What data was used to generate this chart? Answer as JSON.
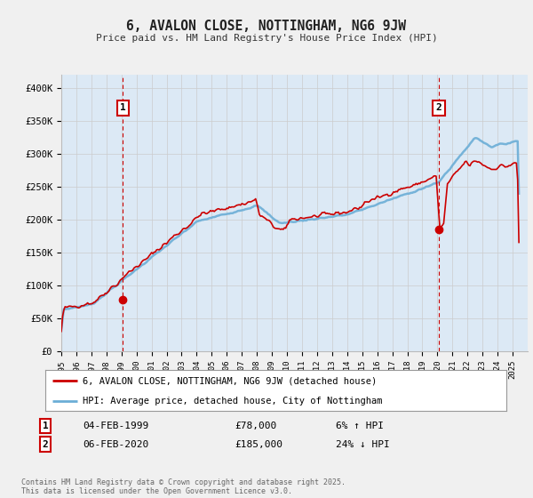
{
  "title": "6, AVALON CLOSE, NOTTINGHAM, NG6 9JW",
  "subtitle": "Price paid vs. HM Land Registry's House Price Index (HPI)",
  "legend_line1": "6, AVALON CLOSE, NOTTINGHAM, NG6 9JW (detached house)",
  "legend_line2": "HPI: Average price, detached house, City of Nottingham",
  "annotation1_date": "04-FEB-1999",
  "annotation1_price": "£78,000",
  "annotation1_hpi": "6% ↑ HPI",
  "annotation1_year": 1999.1,
  "annotation1_value": 78000,
  "annotation2_date": "06-FEB-2020",
  "annotation2_price": "£185,000",
  "annotation2_hpi": "24% ↓ HPI",
  "annotation2_year": 2020.1,
  "annotation2_value": 185000,
  "yticks": [
    0,
    50000,
    100000,
    150000,
    200000,
    250000,
    300000,
    350000,
    400000
  ],
  "ytick_labels": [
    "£0",
    "£50K",
    "£100K",
    "£150K",
    "£200K",
    "£250K",
    "£300K",
    "£350K",
    "£400K"
  ],
  "footer": "Contains HM Land Registry data © Crown copyright and database right 2025.\nThis data is licensed under the Open Government Licence v3.0.",
  "bg_color": "#f0f0f0",
  "plot_bg_color": "#dce9f5",
  "line_color_hpi": "#6baed6",
  "line_color_price": "#cc0000",
  "dashed_line_color": "#cc0000",
  "grid_color": "#cccccc",
  "xmin": 1995,
  "xmax": 2026,
  "ymin": 0,
  "ymax": 420000
}
